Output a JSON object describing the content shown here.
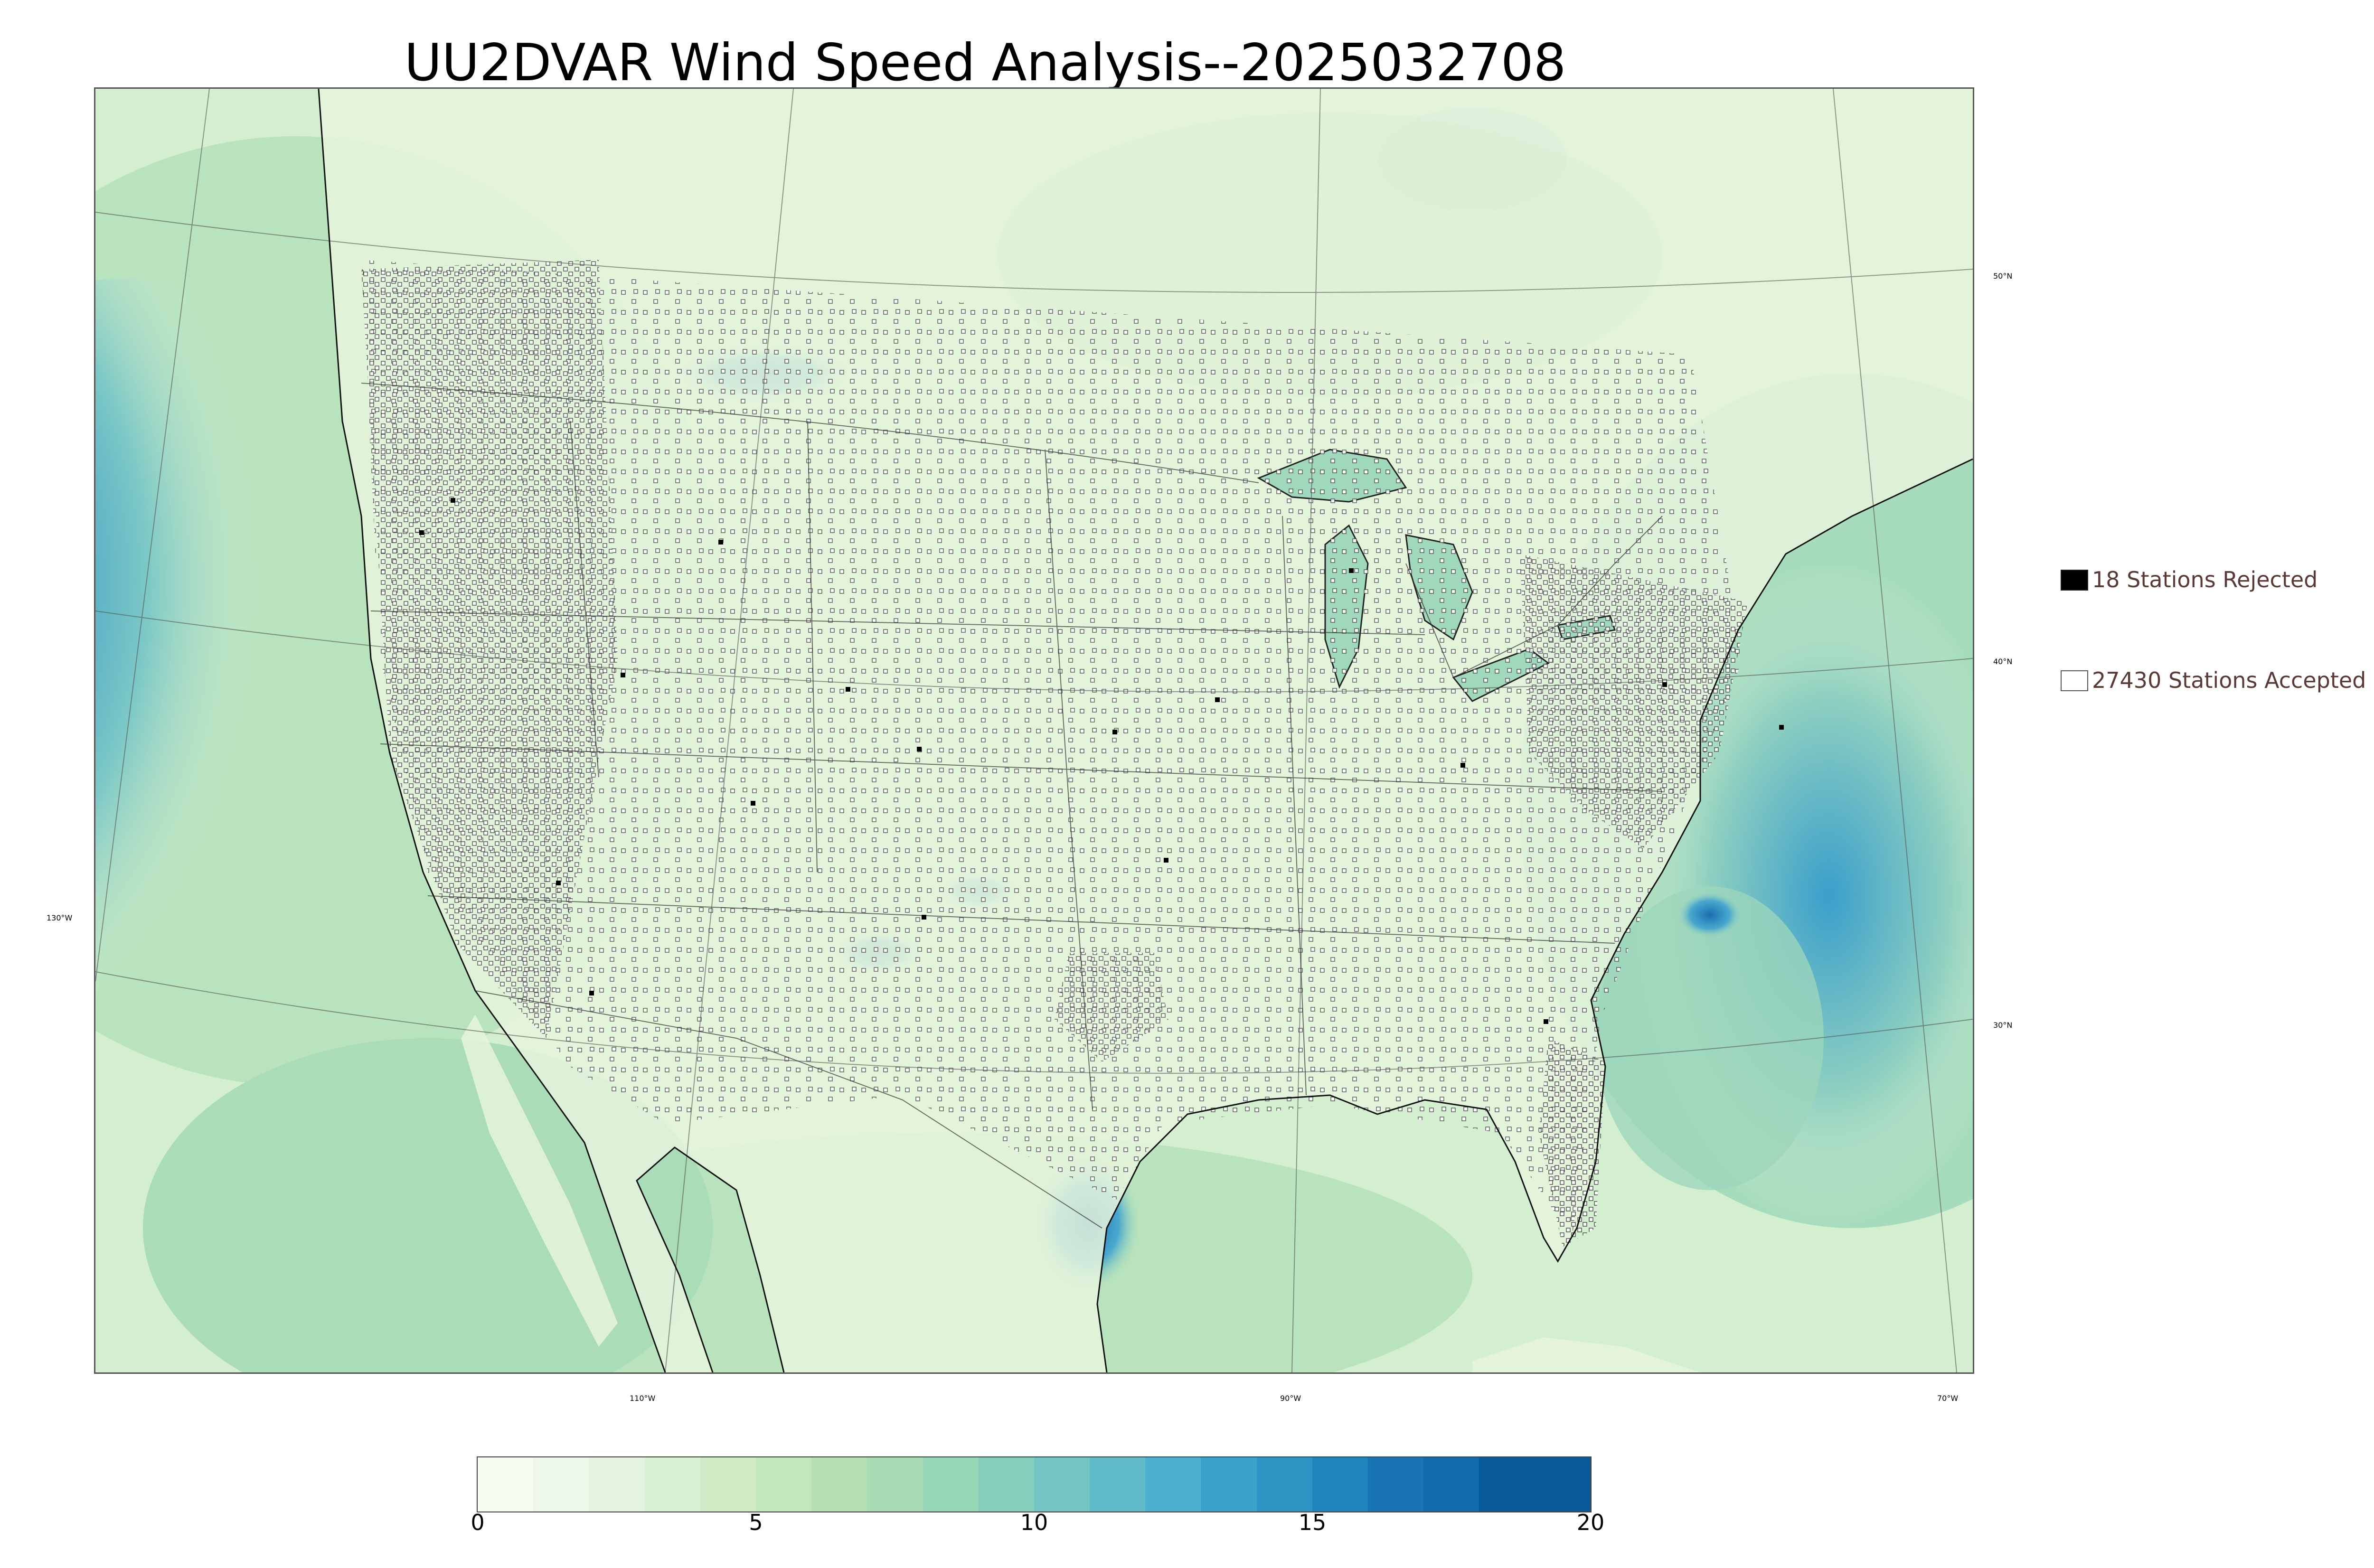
{
  "title": "UU2DVAR Wind Speed Analysis--2025032708",
  "map": {
    "lat_labels": [
      "50°N",
      "40°N",
      "30°N"
    ],
    "lon_labels": [
      "130°W",
      "110°W",
      "90°W",
      "70°W"
    ],
    "field": "wind speed",
    "station_marker": "square"
  },
  "legend": {
    "rejected": {
      "label": "18 Stations Rejected",
      "count": 18,
      "color": "#000000"
    },
    "accepted": {
      "label": "27430 Stations Accepted",
      "count": 27430,
      "color": "#ffffff"
    }
  },
  "colorbar": {
    "min": 0,
    "max": 20,
    "ticks": [
      "0",
      "5",
      "10",
      "15",
      "20"
    ],
    "tick_values": [
      0,
      5,
      10,
      15,
      20
    ],
    "boundaries": [
      0,
      1,
      2,
      3,
      4,
      5,
      6,
      7,
      8,
      9,
      10,
      11,
      12,
      13,
      14,
      15,
      16,
      17,
      18,
      20
    ],
    "colors": [
      "#f7fcf0",
      "#eef8e8",
      "#e4f4df",
      "#daf0d4",
      "#cfebc6",
      "#c3e6bc",
      "#b6e1b6",
      "#a8dcb4",
      "#98d6b8",
      "#86cebc",
      "#73c5c4",
      "#60bbc8",
      "#4cb0d0",
      "#3ca2cc",
      "#2e94c4",
      "#2284bc",
      "#1874b4",
      "#106aac",
      "#085a98"
    ]
  }
}
